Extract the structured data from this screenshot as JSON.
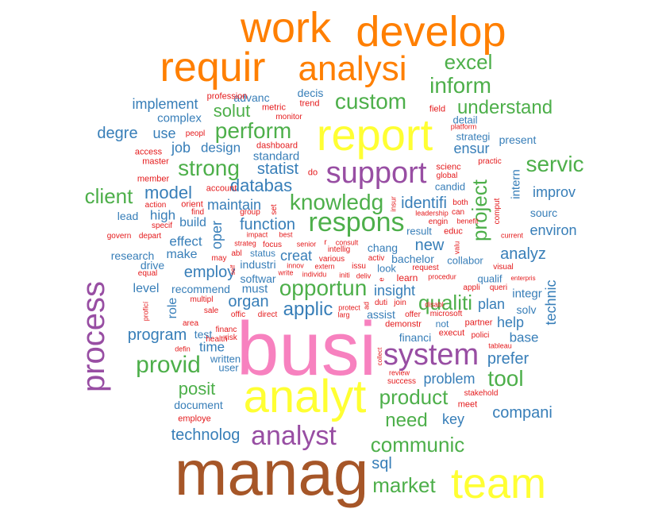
{
  "colors": {
    "brown": "#a65628",
    "pink": "#f781bf",
    "yellow": "#ffff33",
    "orange": "#ff7f00",
    "purple": "#984ea3",
    "green": "#4daf4a",
    "blue": "#377eb8",
    "red": "#e41a1c"
  },
  "words": [
    {
      "text": "busi",
      "color": "brown_pink"
    },
    {
      "text": "manag",
      "color": "brown"
    },
    {
      "text": "analyt",
      "color": "yellow"
    },
    {
      "text": "report",
      "color": "yellow"
    },
    {
      "text": "team",
      "color": "yellow"
    },
    {
      "text": "work",
      "color": "orange"
    },
    {
      "text": "develop",
      "color": "orange"
    },
    {
      "text": "requir",
      "color": "orange"
    },
    {
      "text": "analysi",
      "color": "orange"
    },
    {
      "text": "process",
      "color": "purple"
    },
    {
      "text": "system",
      "color": "purple"
    },
    {
      "text": "support",
      "color": "purple"
    },
    {
      "text": "analyst",
      "color": "purple"
    },
    {
      "text": "respons",
      "color": "green"
    },
    {
      "text": "knowledg",
      "color": "green"
    },
    {
      "text": "provid",
      "color": "green"
    },
    {
      "text": "custom",
      "color": "green"
    },
    {
      "text": "inform",
      "color": "green"
    },
    {
      "text": "excel",
      "color": "green"
    },
    {
      "text": "perform",
      "color": "green"
    },
    {
      "text": "strong",
      "color": "green"
    },
    {
      "text": "understand",
      "color": "green"
    },
    {
      "text": "servic",
      "color": "green"
    },
    {
      "text": "client",
      "color": "green"
    },
    {
      "text": "opportun",
      "color": "green"
    },
    {
      "text": "qualiti",
      "color": "green"
    },
    {
      "text": "product",
      "color": "green"
    },
    {
      "text": "tool",
      "color": "green"
    },
    {
      "text": "communic",
      "color": "green"
    },
    {
      "text": "need",
      "color": "green"
    },
    {
      "text": "market",
      "color": "green"
    },
    {
      "text": "project",
      "color": "green"
    },
    {
      "text": "posit",
      "color": "green"
    },
    {
      "text": "solut",
      "color": "green"
    },
    {
      "text": "applic",
      "color": "blue"
    },
    {
      "text": "databas",
      "color": "blue"
    },
    {
      "text": "statist",
      "color": "blue"
    },
    {
      "text": "model",
      "color": "blue"
    },
    {
      "text": "degre",
      "color": "blue"
    },
    {
      "text": "implement",
      "color": "blue"
    },
    {
      "text": "program",
      "color": "blue"
    },
    {
      "text": "technolog",
      "color": "blue"
    },
    {
      "text": "compani",
      "color": "blue"
    },
    {
      "text": "organ",
      "color": "blue"
    },
    {
      "text": "employ",
      "color": "blue"
    },
    {
      "text": "function",
      "color": "blue"
    },
    {
      "text": "maintain",
      "color": "blue"
    },
    {
      "text": "identifi",
      "color": "blue"
    },
    {
      "text": "new",
      "color": "blue"
    },
    {
      "text": "insight",
      "color": "blue"
    },
    {
      "text": "sql",
      "color": "blue"
    },
    {
      "text": "prefer",
      "color": "blue"
    },
    {
      "text": "improv",
      "color": "blue"
    },
    {
      "text": "environ",
      "color": "blue"
    },
    {
      "text": "analyz",
      "color": "blue"
    },
    {
      "text": "technic",
      "color": "blue"
    },
    {
      "text": "plan",
      "color": "blue"
    },
    {
      "text": "help",
      "color": "blue"
    },
    {
      "text": "base",
      "color": "blue"
    },
    {
      "text": "problem",
      "color": "blue"
    },
    {
      "text": "key",
      "color": "blue"
    },
    {
      "text": "ensur",
      "color": "blue"
    },
    {
      "text": "use",
      "color": "blue"
    },
    {
      "text": "job",
      "color": "blue"
    },
    {
      "text": "design",
      "color": "blue"
    },
    {
      "text": "oper",
      "color": "blue"
    },
    {
      "text": "creat",
      "color": "blue"
    },
    {
      "text": "high",
      "color": "blue"
    },
    {
      "text": "build",
      "color": "blue"
    },
    {
      "text": "effect",
      "color": "blue"
    },
    {
      "text": "make",
      "color": "blue"
    },
    {
      "text": "level",
      "color": "blue"
    },
    {
      "text": "role",
      "color": "blue"
    },
    {
      "text": "time",
      "color": "blue"
    },
    {
      "text": "must",
      "color": "blue"
    },
    {
      "text": "integr",
      "color": "blue"
    },
    {
      "text": "intern",
      "color": "blue"
    },
    {
      "text": "standard",
      "color": "blue"
    },
    {
      "text": "complex",
      "color": "blue"
    },
    {
      "text": "advanc",
      "color": "blue"
    },
    {
      "text": "decis",
      "color": "blue"
    },
    {
      "text": "detail",
      "color": "blue"
    },
    {
      "text": "present",
      "color": "blue"
    },
    {
      "text": "strategi",
      "color": "blue"
    },
    {
      "text": "candid",
      "color": "blue"
    },
    {
      "text": "sourc",
      "color": "blue"
    },
    {
      "text": "lead",
      "color": "blue"
    },
    {
      "text": "research",
      "color": "blue"
    },
    {
      "text": "drive",
      "color": "blue"
    },
    {
      "text": "recommend",
      "color": "blue"
    },
    {
      "text": "industri",
      "color": "blue"
    },
    {
      "text": "softwar",
      "color": "blue"
    },
    {
      "text": "chang",
      "color": "blue"
    },
    {
      "text": "look",
      "color": "blue"
    },
    {
      "text": "bachelor",
      "color": "blue"
    },
    {
      "text": "result",
      "color": "blue"
    },
    {
      "text": "collabor",
      "color": "blue"
    },
    {
      "text": "qualif",
      "color": "blue"
    },
    {
      "text": "solv",
      "color": "blue"
    },
    {
      "text": "assist",
      "color": "blue"
    },
    {
      "text": "financi",
      "color": "blue"
    },
    {
      "text": "test",
      "color": "blue"
    },
    {
      "text": "user",
      "color": "blue"
    },
    {
      "text": "written",
      "color": "blue"
    },
    {
      "text": "document",
      "color": "blue"
    },
    {
      "text": "status",
      "color": "blue"
    },
    {
      "text": "not",
      "color": "blue"
    },
    {
      "text": "learn",
      "color": "red"
    },
    {
      "text": "profession",
      "color": "red"
    },
    {
      "text": "metric",
      "color": "red"
    },
    {
      "text": "monitor",
      "color": "red"
    },
    {
      "text": "trend",
      "color": "red"
    },
    {
      "text": "field",
      "color": "red"
    },
    {
      "text": "platform",
      "color": "red"
    },
    {
      "text": "peopl",
      "color": "red"
    },
    {
      "text": "dashboard",
      "color": "red"
    },
    {
      "text": "access",
      "color": "red"
    },
    {
      "text": "master",
      "color": "red"
    },
    {
      "text": "member",
      "color": "red"
    },
    {
      "text": "account",
      "color": "red"
    },
    {
      "text": "do",
      "color": "red"
    },
    {
      "text": "global",
      "color": "red"
    },
    {
      "text": "scienc",
      "color": "red"
    },
    {
      "text": "practic",
      "color": "red"
    },
    {
      "text": "action",
      "color": "red"
    },
    {
      "text": "orient",
      "color": "red"
    },
    {
      "text": "find",
      "color": "red"
    },
    {
      "text": "group",
      "color": "red"
    },
    {
      "text": "set",
      "color": "red"
    },
    {
      "text": "insur",
      "color": "red"
    },
    {
      "text": "leadership",
      "color": "red"
    },
    {
      "text": "both",
      "color": "red"
    },
    {
      "text": "can",
      "color": "red"
    },
    {
      "text": "engin",
      "color": "red"
    },
    {
      "text": "benefit",
      "color": "red"
    },
    {
      "text": "educ",
      "color": "red"
    },
    {
      "text": "comput",
      "color": "red"
    },
    {
      "text": "current",
      "color": "red"
    },
    {
      "text": "specif",
      "color": "red"
    },
    {
      "text": "govern",
      "color": "red"
    },
    {
      "text": "depart",
      "color": "red"
    },
    {
      "text": "impact",
      "color": "red"
    },
    {
      "text": "best",
      "color": "red"
    },
    {
      "text": "senior",
      "color": "red"
    },
    {
      "text": "r",
      "color": "red"
    },
    {
      "text": "consult",
      "color": "red"
    },
    {
      "text": "intellig",
      "color": "red"
    },
    {
      "text": "strateg",
      "color": "red"
    },
    {
      "text": "focus",
      "color": "red"
    },
    {
      "text": "valu",
      "color": "red"
    },
    {
      "text": "may",
      "color": "red"
    },
    {
      "text": "abl",
      "color": "red"
    },
    {
      "text": "various",
      "color": "red"
    },
    {
      "text": "activ",
      "color": "red"
    },
    {
      "text": "equal",
      "color": "red"
    },
    {
      "text": "self",
      "color": "red"
    },
    {
      "text": "innov",
      "color": "red"
    },
    {
      "text": "write",
      "color": "red"
    },
    {
      "text": "extern",
      "color": "red"
    },
    {
      "text": "individu",
      "color": "red"
    },
    {
      "text": "issu",
      "color": "red"
    },
    {
      "text": "initi",
      "color": "red"
    },
    {
      "text": "deliv",
      "color": "red"
    },
    {
      "text": "e",
      "color": "red"
    },
    {
      "text": "request",
      "color": "red"
    },
    {
      "text": "procedur",
      "color": "red"
    },
    {
      "text": "appli",
      "color": "red"
    },
    {
      "text": "queri",
      "color": "red"
    },
    {
      "text": "visual",
      "color": "red"
    },
    {
      "text": "enterpris",
      "color": "red"
    },
    {
      "text": "multipl",
      "color": "red"
    },
    {
      "text": "proficí",
      "color": "red"
    },
    {
      "text": "sale",
      "color": "red"
    },
    {
      "text": "offic",
      "color": "red"
    },
    {
      "text": "direct",
      "color": "red"
    },
    {
      "text": "protect",
      "color": "red"
    },
    {
      "text": "larg",
      "color": "red"
    },
    {
      "text": "ad",
      "color": "red"
    },
    {
      "text": "duti",
      "color": "red"
    },
    {
      "text": "join",
      "color": "red"
    },
    {
      "text": "disabl",
      "color": "red"
    },
    {
      "text": "offer",
      "color": "red"
    },
    {
      "text": "microsoft",
      "color": "red"
    },
    {
      "text": "area",
      "color": "red"
    },
    {
      "text": "health",
      "color": "red"
    },
    {
      "text": "financ",
      "color": "red"
    },
    {
      "text": "risk",
      "color": "red"
    },
    {
      "text": "demonstr",
      "color": "red"
    },
    {
      "text": "execut",
      "color": "red"
    },
    {
      "text": "partner",
      "color": "red"
    },
    {
      "text": "polici",
      "color": "red"
    },
    {
      "text": "tableau",
      "color": "red"
    },
    {
      "text": "defin",
      "color": "red"
    },
    {
      "text": "collect",
      "color": "red"
    },
    {
      "text": "review",
      "color": "red"
    },
    {
      "text": "success",
      "color": "red"
    },
    {
      "text": "stakehold",
      "color": "red"
    },
    {
      "text": "meet",
      "color": "red"
    },
    {
      "text": "employe",
      "color": "red"
    }
  ]
}
